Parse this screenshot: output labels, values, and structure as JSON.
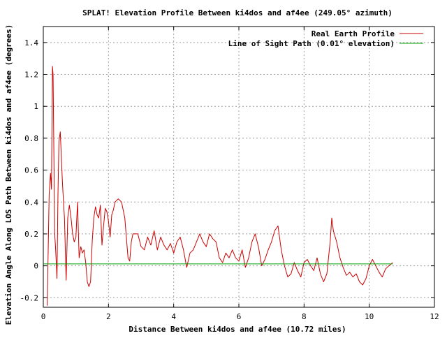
{
  "chart_data": {
    "type": "line",
    "title": "SPLAT! Elevation Profile Between ki4dos and af4ee (249.05° azimuth)",
    "xlabel": "Distance Between ki4dos and af4ee (10.72 miles)",
    "ylabel": "Elevation Angle Along LOS Path Between ki4dos and af4ee (degrees)",
    "xlim": [
      0,
      12
    ],
    "ylim": [
      -0.26,
      1.5
    ],
    "x_ticks": [
      0,
      2,
      4,
      6,
      8,
      10,
      12
    ],
    "y_ticks": [
      -0.2,
      0,
      0.2,
      0.4,
      0.6,
      0.8,
      1,
      1.2,
      1.4
    ],
    "x_tick_labels": [
      "0",
      "2",
      "4",
      "6",
      "8",
      "10",
      "12"
    ],
    "y_tick_labels": [
      "-0.2",
      "0",
      "0.2",
      "0.4",
      "0.6",
      "0.8",
      "1",
      "1.2",
      "1.4"
    ],
    "grid": true,
    "legend_position": "top-right",
    "series": [
      {
        "name": "Real Earth Profile",
        "color": "#cc0000",
        "x": [
          0.12,
          0.18,
          0.22,
          0.25,
          0.28,
          0.3,
          0.33,
          0.35,
          0.38,
          0.42,
          0.45,
          0.48,
          0.52,
          0.55,
          0.58,
          0.62,
          0.65,
          0.7,
          0.75,
          0.8,
          0.85,
          0.9,
          0.95,
          1.0,
          1.05,
          1.1,
          1.15,
          1.2,
          1.25,
          1.3,
          1.35,
          1.4,
          1.45,
          1.5,
          1.55,
          1.6,
          1.65,
          1.7,
          1.75,
          1.8,
          1.85,
          1.9,
          1.95,
          2.0,
          2.05,
          2.1,
          2.15,
          2.2,
          2.3,
          2.4,
          2.5,
          2.6,
          2.65,
          2.7,
          2.75,
          2.8,
          2.9,
          3.0,
          3.1,
          3.2,
          3.3,
          3.4,
          3.5,
          3.6,
          3.7,
          3.8,
          3.9,
          4.0,
          4.1,
          4.2,
          4.3,
          4.4,
          4.5,
          4.6,
          4.7,
          4.8,
          4.9,
          5.0,
          5.1,
          5.2,
          5.3,
          5.4,
          5.5,
          5.6,
          5.7,
          5.8,
          5.9,
          6.0,
          6.1,
          6.2,
          6.3,
          6.4,
          6.5,
          6.6,
          6.7,
          6.8,
          6.9,
          7.0,
          7.1,
          7.2,
          7.3,
          7.4,
          7.5,
          7.6,
          7.7,
          7.8,
          7.9,
          8.0,
          8.1,
          8.2,
          8.3,
          8.4,
          8.5,
          8.6,
          8.7,
          8.8,
          8.85,
          8.9,
          9.0,
          9.1,
          9.2,
          9.3,
          9.4,
          9.5,
          9.6,
          9.7,
          9.8,
          9.9,
          10.0,
          10.1,
          10.2,
          10.3,
          10.4,
          10.5,
          10.6,
          10.72
        ],
        "y": [
          -0.25,
          0.45,
          0.58,
          0.48,
          1.25,
          1.2,
          0.6,
          0.2,
          0.1,
          -0.08,
          0.45,
          0.78,
          0.84,
          0.7,
          0.55,
          0.4,
          0.3,
          -0.09,
          0.3,
          0.38,
          0.3,
          0.2,
          0.15,
          0.18,
          0.4,
          0.05,
          0.12,
          0.08,
          0.1,
          0.02,
          -0.1,
          -0.13,
          -0.1,
          0.15,
          0.3,
          0.37,
          0.32,
          0.3,
          0.38,
          0.13,
          0.25,
          0.36,
          0.34,
          0.28,
          0.18,
          0.32,
          0.35,
          0.4,
          0.42,
          0.4,
          0.3,
          0.05,
          0.03,
          0.15,
          0.2,
          0.2,
          0.2,
          0.12,
          0.1,
          0.18,
          0.13,
          0.22,
          0.1,
          0.18,
          0.13,
          0.1,
          0.14,
          0.08,
          0.15,
          0.18,
          0.1,
          -0.01,
          0.08,
          0.1,
          0.15,
          0.2,
          0.15,
          0.12,
          0.2,
          0.17,
          0.15,
          0.05,
          0.02,
          0.08,
          0.05,
          0.1,
          0.05,
          0.03,
          0.1,
          -0.01,
          0.05,
          0.15,
          0.2,
          0.12,
          0.0,
          0.04,
          0.1,
          0.15,
          0.22,
          0.25,
          0.1,
          0.0,
          -0.07,
          -0.05,
          0.02,
          -0.03,
          -0.07,
          0.02,
          0.04,
          0.0,
          -0.03,
          0.05,
          -0.05,
          -0.1,
          -0.05,
          0.15,
          0.3,
          0.22,
          0.15,
          0.05,
          -0.01,
          -0.06,
          -0.04,
          -0.07,
          -0.05,
          -0.1,
          -0.12,
          -0.08,
          0.0,
          0.04,
          0.0,
          -0.04,
          -0.07,
          -0.02,
          0.0,
          0.02
        ]
      },
      {
        "name": "Line of Sight Path (0.01° elevation)",
        "color": "#00a000",
        "x": [
          0,
          10.72
        ],
        "y": [
          0.012,
          0.012
        ]
      }
    ]
  }
}
